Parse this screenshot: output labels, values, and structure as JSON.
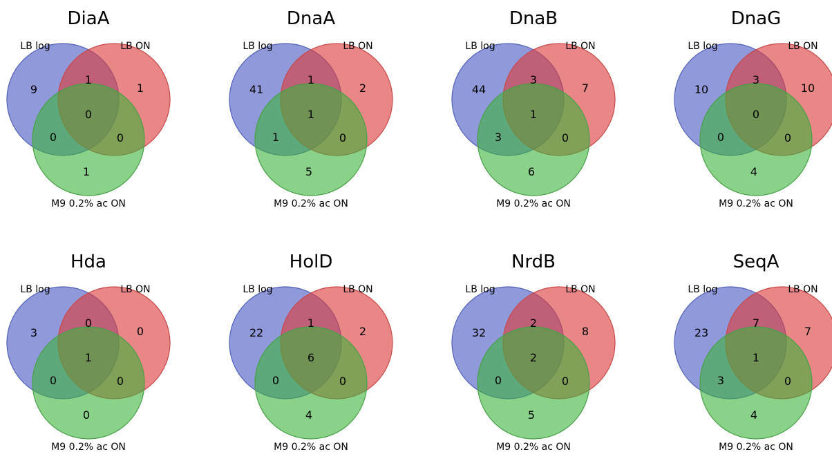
{
  "colors": {
    "set_a": "#4c5cc4",
    "set_b": "#dc3c3c",
    "set_c": "#3cb43c",
    "edge_a": "#5060b8",
    "edge_b": "#c84848",
    "edge_c": "#45a045"
  },
  "set_labels": {
    "a": "LB log",
    "b": "LB ON",
    "c": "M9 0.2% ac ON"
  },
  "panels": [
    {
      "title": "DiaA",
      "counts": {
        "a_only": "9",
        "b_only": "1",
        "c_only": "1",
        "ab": "1",
        "ac": "0",
        "bc": "0",
        "abc": "0"
      }
    },
    {
      "title": "DnaA",
      "counts": {
        "a_only": "41",
        "b_only": "2",
        "c_only": "5",
        "ab": "1",
        "ac": "1",
        "bc": "0",
        "abc": "1"
      }
    },
    {
      "title": "DnaB",
      "counts": {
        "a_only": "44",
        "b_only": "7",
        "c_only": "6",
        "ab": "3",
        "ac": "3",
        "bc": "0",
        "abc": "1"
      }
    },
    {
      "title": "DnaG",
      "counts": {
        "a_only": "10",
        "b_only": "10",
        "c_only": "4",
        "ab": "3",
        "ac": "0",
        "bc": "0",
        "abc": "0"
      }
    },
    {
      "title": "Hda",
      "counts": {
        "a_only": "3",
        "b_only": "0",
        "c_only": "0",
        "ab": "0",
        "ac": "0",
        "bc": "0",
        "abc": "1"
      }
    },
    {
      "title": "HolD",
      "counts": {
        "a_only": "22",
        "b_only": "2",
        "c_only": "4",
        "ab": "1",
        "ac": "0",
        "bc": "0",
        "abc": "6"
      }
    },
    {
      "title": "NrdB",
      "counts": {
        "a_only": "32",
        "b_only": "8",
        "c_only": "5",
        "ab": "2",
        "ac": "0",
        "bc": "0",
        "abc": "2"
      }
    },
    {
      "title": "SeqA",
      "counts": {
        "a_only": "23",
        "b_only": "7",
        "c_only": "4",
        "ab": "7",
        "ac": "3",
        "bc": "0",
        "abc": "1"
      }
    }
  ]
}
